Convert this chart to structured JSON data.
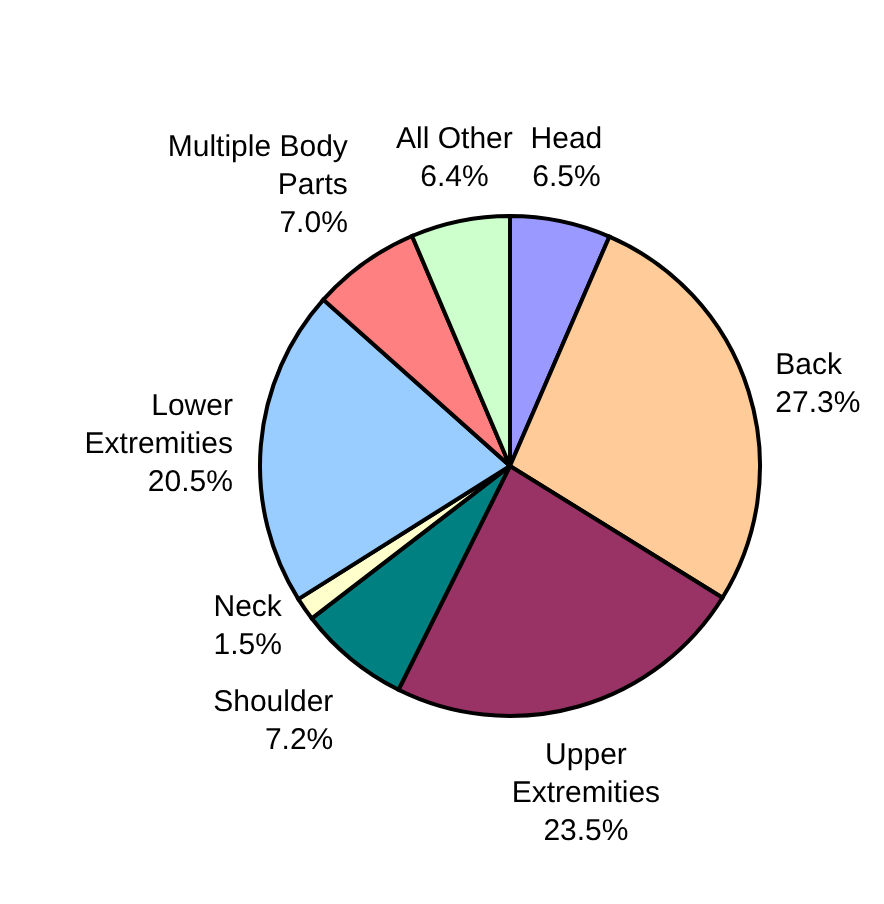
{
  "chart_data": {
    "type": "pie",
    "categories": [
      "Head",
      "Back",
      "Upper Extremities",
      "Shoulder",
      "Neck",
      "Lower Extremities",
      "Multiple Body Parts",
      "All Other"
    ],
    "values": [
      6.5,
      27.3,
      23.5,
      7.2,
      1.5,
      20.5,
      7.0,
      6.4
    ],
    "value_labels": [
      "6.5%",
      "27.3%",
      "23.5%",
      "7.2%",
      "1.5%",
      "20.5%",
      "7.0%",
      "6.4%"
    ],
    "colors": [
      "#9999ff",
      "#ffcc99",
      "#993366",
      "#008080",
      "#ffffcc",
      "#99ccff",
      "#ff8080",
      "#ccffcc"
    ],
    "legend": false
  }
}
